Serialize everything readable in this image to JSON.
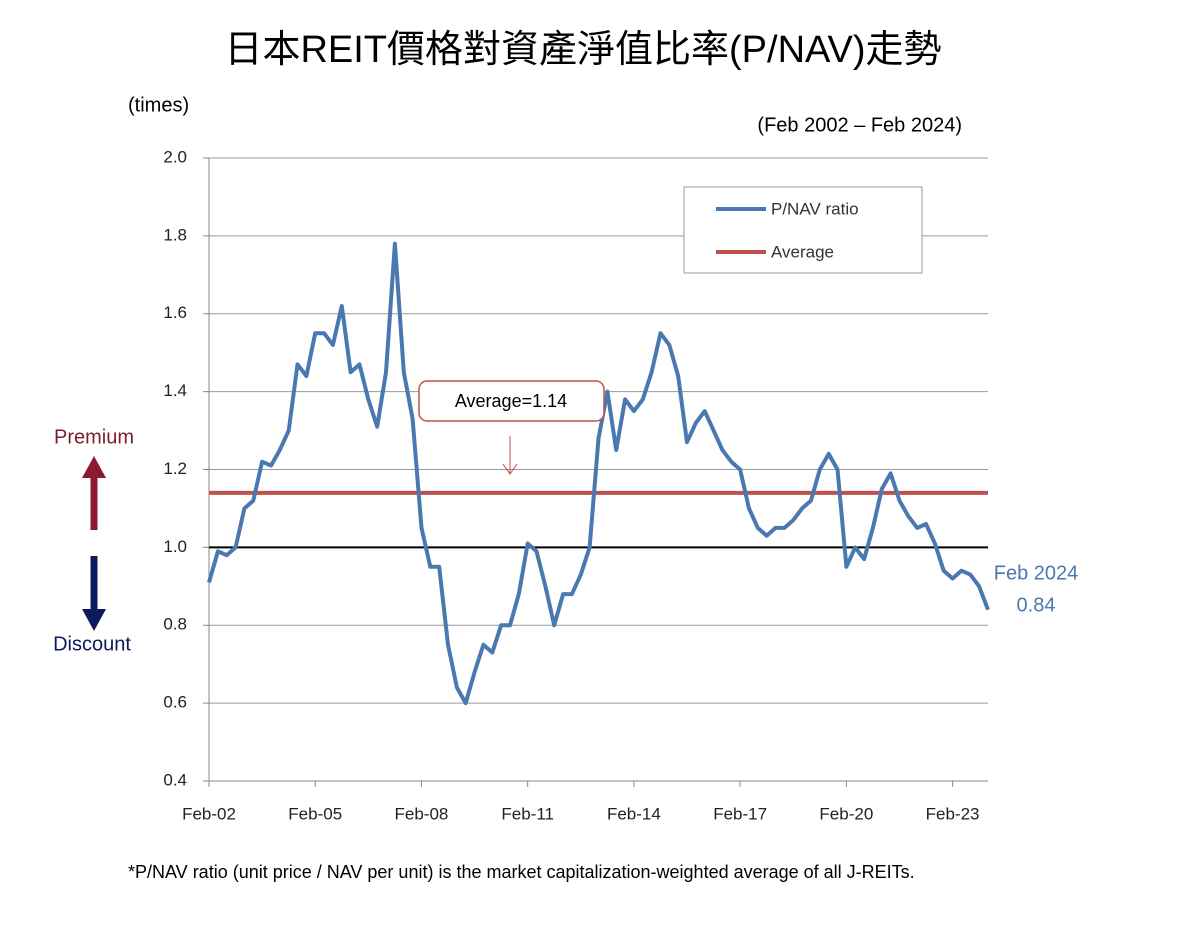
{
  "chart_data": {
    "type": "line",
    "title": "日本REIT價格對資產淨值比率(P/NAV)走勢",
    "subtitle": "(Feb 2002 – Feb 2024)",
    "y_label": "(times)",
    "x": [
      "2002-02",
      "2002-05",
      "2002-08",
      "2002-11",
      "2003-02",
      "2003-05",
      "2003-08",
      "2003-11",
      "2004-02",
      "2004-05",
      "2004-08",
      "2004-11",
      "2005-02",
      "2005-05",
      "2005-08",
      "2005-11",
      "2006-02",
      "2006-05",
      "2006-08",
      "2006-11",
      "2007-02",
      "2007-05",
      "2007-08",
      "2007-11",
      "2008-02",
      "2008-05",
      "2008-08",
      "2008-11",
      "2009-02",
      "2009-05",
      "2009-08",
      "2009-11",
      "2010-02",
      "2010-05",
      "2010-08",
      "2010-11",
      "2011-02",
      "2011-05",
      "2011-08",
      "2011-11",
      "2012-02",
      "2012-05",
      "2012-08",
      "2012-11",
      "2013-02",
      "2013-05",
      "2013-08",
      "2013-11",
      "2014-02",
      "2014-05",
      "2014-08",
      "2014-11",
      "2015-02",
      "2015-05",
      "2015-08",
      "2015-11",
      "2016-02",
      "2016-05",
      "2016-08",
      "2016-11",
      "2017-02",
      "2017-05",
      "2017-08",
      "2017-11",
      "2018-02",
      "2018-05",
      "2018-08",
      "2018-11",
      "2019-02",
      "2019-05",
      "2019-08",
      "2019-11",
      "2020-02",
      "2020-05",
      "2020-08",
      "2020-11",
      "2021-02",
      "2021-05",
      "2021-08",
      "2021-11",
      "2022-02",
      "2022-05",
      "2022-08",
      "2022-11",
      "2023-02",
      "2023-05",
      "2023-08",
      "2023-11",
      "2024-02"
    ],
    "series": [
      {
        "name": "P/NAV ratio",
        "color": "#4a78b0",
        "values": [
          0.91,
          0.99,
          0.98,
          1.0,
          1.1,
          1.12,
          1.22,
          1.21,
          1.25,
          1.3,
          1.47,
          1.44,
          1.55,
          1.55,
          1.52,
          1.62,
          1.45,
          1.47,
          1.38,
          1.31,
          1.45,
          1.78,
          1.45,
          1.33,
          1.05,
          0.95,
          0.95,
          0.75,
          0.64,
          0.6,
          0.68,
          0.75,
          0.73,
          0.8,
          0.8,
          0.88,
          1.01,
          0.99,
          0.9,
          0.8,
          0.88,
          0.88,
          0.93,
          1.0,
          1.28,
          1.4,
          1.25,
          1.38,
          1.35,
          1.38,
          1.45,
          1.55,
          1.52,
          1.44,
          1.27,
          1.32,
          1.35,
          1.3,
          1.25,
          1.22,
          1.2,
          1.1,
          1.05,
          1.03,
          1.05,
          1.05,
          1.07,
          1.1,
          1.12,
          1.2,
          1.24,
          1.2,
          0.95,
          1.0,
          0.97,
          1.05,
          1.15,
          1.19,
          1.12,
          1.08,
          1.05,
          1.06,
          1.01,
          0.94,
          0.92,
          0.94,
          0.93,
          0.9,
          0.84
        ]
      }
    ],
    "reference_line": {
      "name": "Average",
      "value": 1.14,
      "color": "#c0504d",
      "annotation": "Average=1.14"
    },
    "baseline": {
      "value": 1,
      "color": "#000000"
    },
    "last_point_label": "Feb 2024",
    "premium_label": "Premium",
    "discount_label": "Discount",
    "xlim": [
      "2002-02",
      "2024-02"
    ],
    "xticks": [
      {
        "value": "2002-02",
        "label": "Feb-02"
      },
      {
        "value": "2005-02",
        "label": "Feb-05"
      },
      {
        "value": "2008-02",
        "label": "Feb-08"
      },
      {
        "value": "2011-02",
        "label": "Feb-11"
      },
      {
        "value": "2014-02",
        "label": "Feb-14"
      },
      {
        "value": "2017-02",
        "label": "Feb-17"
      },
      {
        "value": "2020-02",
        "label": "Feb-20"
      },
      {
        "value": "2023-02",
        "label": "Feb-23"
      }
    ],
    "ylim": [
      0.4,
      2
    ],
    "yticks": [
      0.4,
      0.6,
      0.8,
      {
        "value": 1,
        "label": "1.0"
      },
      1.2,
      1.4,
      1.6,
      1.8,
      {
        "value": 2,
        "label": "2.0"
      }
    ],
    "grid": true,
    "legend": "top-right",
    "footnote": "*P/NAV ratio (unit price / NAV per unit) is the market capitalization-weighted average of all J-REITs."
  }
}
